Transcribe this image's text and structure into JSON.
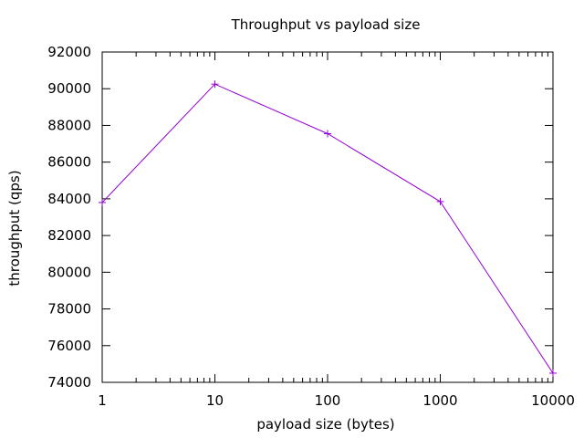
{
  "chart_data": {
    "type": "line",
    "title": "Throughput vs payload size",
    "xlabel": "payload size (bytes)",
    "ylabel": "throughput (qps)",
    "x_scale": "log",
    "xlim": [
      1,
      10000
    ],
    "ylim": [
      74000,
      92000
    ],
    "x_ticks": [
      1,
      10,
      100,
      1000,
      10000
    ],
    "x_tick_labels": [
      "1",
      "10",
      "100",
      "1000",
      "10000"
    ],
    "y_ticks": [
      74000,
      76000,
      78000,
      80000,
      82000,
      84000,
      86000,
      88000,
      90000,
      92000
    ],
    "y_tick_labels": [
      "74000",
      "76000",
      "78000",
      "80000",
      "82000",
      "84000",
      "86000",
      "88000",
      "90000",
      "92000"
    ],
    "grid": false,
    "series": [
      {
        "color": "#9400d3",
        "marker": "plus",
        "x": [
          1,
          10,
          100,
          1000,
          10000
        ],
        "y": [
          83800,
          90250,
          87550,
          83850,
          74500
        ]
      }
    ]
  }
}
